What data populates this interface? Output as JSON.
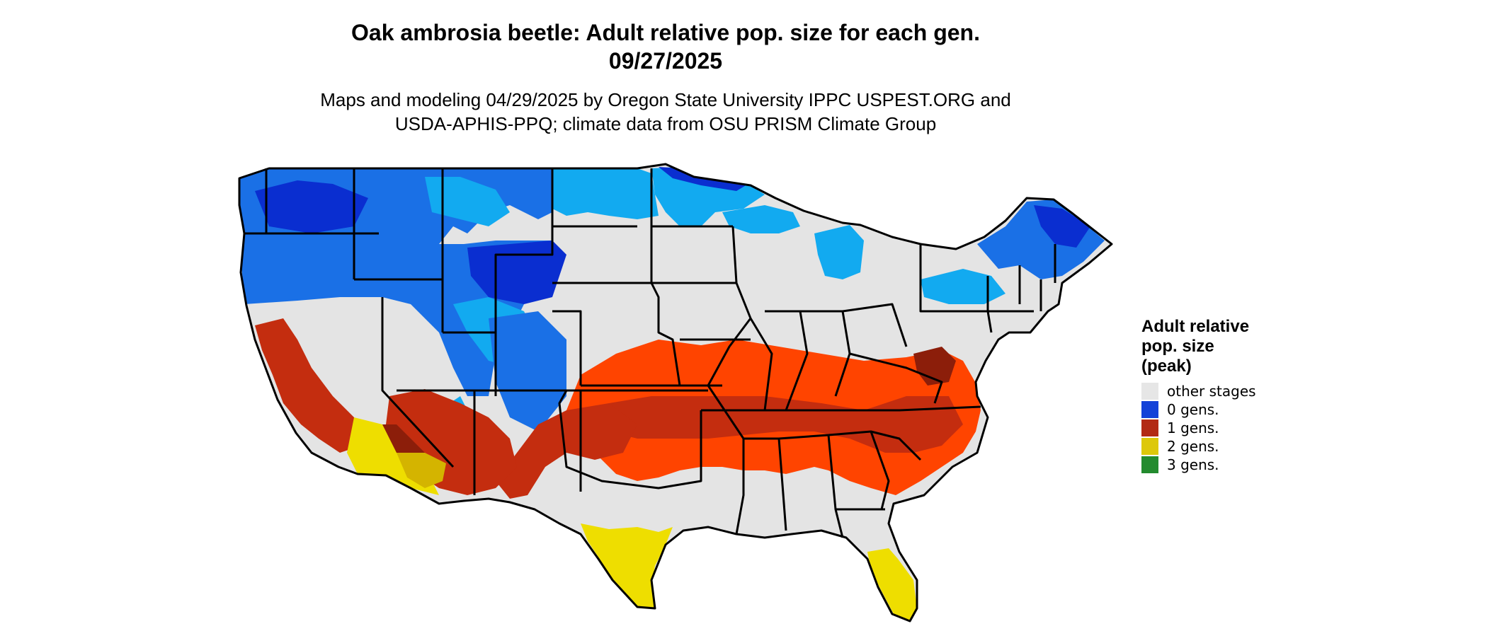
{
  "title": {
    "line1": "Oak ambrosia beetle: Adult relative pop. size for each gen.",
    "line2": "09/27/2025"
  },
  "subtitle": {
    "line1": "Maps and modeling 04/29/2025 by Oregon State University IPPC USPEST.ORG and",
    "line2": "USDA-APHIS-PPQ; climate data from OSU PRISM Climate Group"
  },
  "legend": {
    "title_lines": [
      "Adult relative",
      "pop. size",
      "(peak)"
    ],
    "items": [
      {
        "label": "other stages",
        "color": "#e6e6e6"
      },
      {
        "label": "0 gens.",
        "color": "#1442d8"
      },
      {
        "label": "1 gens.",
        "color": "#b22a14"
      },
      {
        "label": "2 gens.",
        "color": "#ddc80a"
      },
      {
        "label": "3 gens.",
        "color": "#238b2e"
      }
    ]
  },
  "map_colors": {
    "other_stages": "#e4e4e4",
    "cold_light": "#12aaf0",
    "cold_mid": "#1a70e6",
    "cold_dark": "#0a2ed0",
    "warm_orange": "#ff4400",
    "warm_red": "#c42d0f",
    "warm_dark": "#8c1e0a",
    "hot_yellow": "#eede00",
    "hot_gold": "#d4b400",
    "border": "#000000"
  }
}
